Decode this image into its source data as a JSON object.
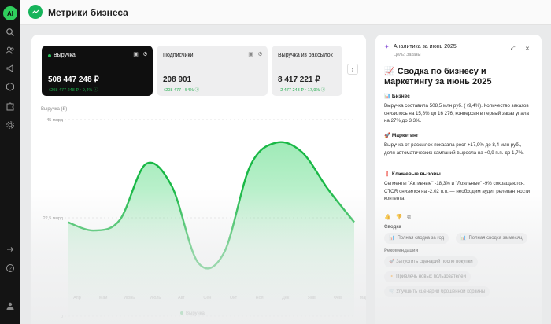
{
  "app": {
    "logo_text": "AI",
    "title": "Метрики бизнеса"
  },
  "rail": {
    "icons": [
      "search-icon",
      "users-icon",
      "megaphone-icon",
      "box-icon",
      "puzzle-icon",
      "gear-icon",
      "logout-icon",
      "help-icon",
      "user-icon"
    ]
  },
  "cards": [
    {
      "label": "Выручка",
      "value": "508 447 248 ₽",
      "change": "+208 477 248 ₽ • 9,4% ⓘ",
      "active": true
    },
    {
      "label": "Подписчики",
      "value": "208 901",
      "change": "+208 477 • 54% ⓘ",
      "active": false
    },
    {
      "label": "Выручка из рассылок",
      "value": "8 417 221 ₽",
      "change": "+2 477 248 ₽ • 17,9% ⓘ",
      "active": false
    }
  ],
  "chart_data": {
    "type": "area",
    "ylabel": "Выручка (₽)",
    "y_ticks": [
      "45 млрд",
      "22,5 млрд",
      "0"
    ],
    "ylim": [
      0,
      45
    ],
    "categories": [
      "Апр",
      "Май",
      "Июнь",
      "Июль",
      "Авг",
      "Сен",
      "Окт",
      "Ноя",
      "Дек",
      "Янв",
      "Фев",
      "Мар"
    ],
    "values": [
      21.5,
      19.6,
      22.0,
      34.8,
      29.7,
      12.3,
      14.5,
      34.3,
      39.7,
      37.5,
      29.0,
      21.5
    ],
    "legend": "Выручка",
    "color": "#19b846",
    "grid": true
  },
  "assistant": {
    "header": "Аналитика за июнь 2025",
    "subheader": "Цель: Заказы",
    "title": "📈 Сводка по бизнесу и маркетингу за июнь 2025",
    "sections": [
      {
        "heading": "📊 Бизнес",
        "text": "Выручка составила 508,5 млн руб. (+9,4%). Количество заказов снизилось на 15,8% до 16 276, конверсия в первый заказ упала на 27% до 3,3%."
      },
      {
        "heading": "🚀 Маркетинг",
        "text": "Выручка от рассылок показала рост +17,9% до 8,4 млн руб., доля автоматических кампаний выросла на +0,9 п.п. до 1,7%."
      },
      {
        "heading": "❗ Ключевые вызовы",
        "text": "Сегменты \"Активные\" -18,3% и \"Лояльные\" -9% сокращаются. CTOR снизился на -2,02 п.п. — необходим аудит релевантности контента."
      }
    ],
    "summary_label": "Сводка",
    "summary_chips": [
      "Полная сводка за год",
      "Полная сводка за месяц"
    ],
    "recs_label": "Рекомендации",
    "recs_chips": [
      "🚀 Запустить сценарий после покупки",
      "🔸 Привлечь новых пользователей",
      "🛒 Улучшить сценарий брошенной корзины"
    ]
  }
}
